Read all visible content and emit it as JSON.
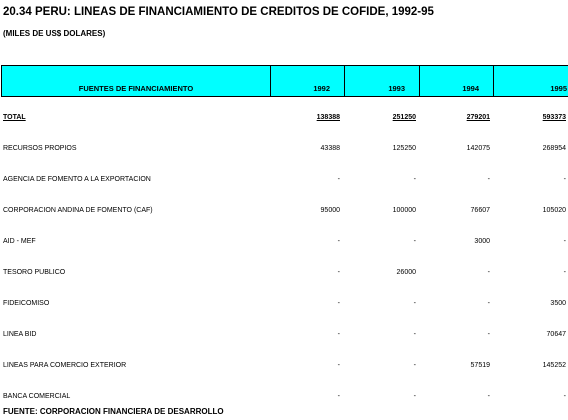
{
  "header": {
    "title": "20.34  PERU: LINEAS DE FINANCIAMIENTO DE CREDITOS DE COFIDE, 1992-95",
    "subtitle": "(MILES DE US$ DOLARES)"
  },
  "table": {
    "columns": [
      "FUENTES DE FINANCIAMIENTO",
      "1992",
      "1993",
      "1994",
      "1995"
    ],
    "rows": [
      [
        "TOTAL",
        "138388",
        "251250",
        "279201",
        "593373"
      ],
      [
        "RECURSOS PROPIOS",
        "43388",
        "125250",
        "142075",
        "268954"
      ],
      [
        "AGENCIA DE FOMENTO A LA EXPORTACION",
        "-",
        "-",
        "-",
        "-"
      ],
      [
        "CORPORACION ANDINA DE FOMENTO (CAF)",
        "95000",
        "100000",
        "76607",
        "105020"
      ],
      [
        "AID - MEF",
        "-",
        "-",
        "3000",
        "-"
      ],
      [
        "TESORO PUBLICO",
        "-",
        "26000",
        "-",
        "-"
      ],
      [
        "FIDEICOMISO",
        "-",
        "-",
        "-",
        "3500"
      ],
      [
        "LINEA BID",
        "-",
        "-",
        "-",
        "70647"
      ],
      [
        "LINEAS PARA COMERCIO EXTERIOR",
        "-",
        "-",
        "57519",
        "145252"
      ],
      [
        "BANCA COMERCIAL",
        "-",
        "-",
        "-",
        "-"
      ]
    ]
  },
  "footer": {
    "source": "FUENTE: CORPORACION FINANCIERA DE DESARROLLO"
  }
}
